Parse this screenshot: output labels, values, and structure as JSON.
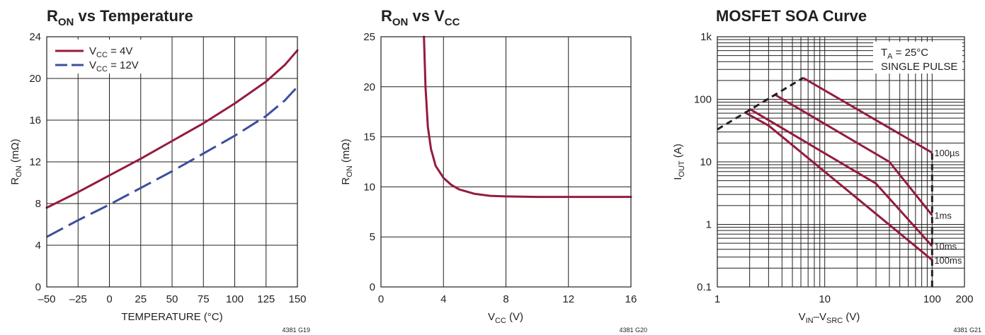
{
  "colors": {
    "red": "#951b3c",
    "blue": "#3d4f9c",
    "black": "#231f20"
  },
  "chart_data": [
    {
      "type": "line",
      "title": {
        "main": "R",
        "sub": "ON",
        "rest": " vs Temperature"
      },
      "xlabel": "TEMPERATURE (°C)",
      "ylabel": {
        "main": "R",
        "sub": "ON",
        "rest": " (mΩ)"
      },
      "xlim": [
        -50,
        150
      ],
      "ylim": [
        0,
        24
      ],
      "xticks": [
        -50,
        -25,
        0,
        25,
        50,
        75,
        100,
        125,
        150
      ],
      "xtick_labels": [
        "–50",
        "–25",
        "0",
        "25",
        "50",
        "75",
        "100",
        "125",
        "150"
      ],
      "yticks": [
        0,
        4,
        8,
        12,
        16,
        20,
        24
      ],
      "ytick_labels": [
        "0",
        "4",
        "8",
        "12",
        "16",
        "20",
        "24"
      ],
      "grid": true,
      "legend": "top-left",
      "series": [
        {
          "name": "VCC = 4V",
          "legend": {
            "main": "V",
            "sub": "CC",
            "rest": " = 4V"
          },
          "style": "solid",
          "color": "#951b3c",
          "x": [
            -50,
            -25,
            0,
            25,
            50,
            75,
            100,
            125,
            140,
            150
          ],
          "y": [
            7.6,
            9.1,
            10.7,
            12.3,
            14.0,
            15.7,
            17.6,
            19.7,
            21.3,
            22.7
          ]
        },
        {
          "name": "VCC = 12V",
          "legend": {
            "main": "V",
            "sub": "CC",
            "rest": " = 12V"
          },
          "style": "dashed",
          "color": "#3d4f9c",
          "x": [
            -50,
            -25,
            0,
            25,
            50,
            75,
            100,
            125,
            140,
            150
          ],
          "y": [
            4.8,
            6.4,
            7.9,
            9.5,
            11.1,
            12.8,
            14.5,
            16.4,
            17.9,
            19.2
          ]
        }
      ],
      "code": "4381 G19"
    },
    {
      "type": "line",
      "title": {
        "main": "R",
        "sub": "ON",
        "mid": " vs V",
        "sub2": "CC"
      },
      "xlabel": {
        "main": "V",
        "sub": "CC",
        "rest": " (V)"
      },
      "ylabel": {
        "main": "R",
        "sub": "ON",
        "rest": " (mΩ)"
      },
      "xlim": [
        0,
        16
      ],
      "ylim": [
        0,
        25
      ],
      "xticks": [
        0,
        4,
        8,
        12,
        16
      ],
      "xtick_labels": [
        "0",
        "4",
        "8",
        "12",
        "16"
      ],
      "yticks": [
        0,
        5,
        10,
        15,
        20,
        25
      ],
      "ytick_labels": [
        "0",
        "5",
        "10",
        "15",
        "20",
        "25"
      ],
      "grid": true,
      "series": [
        {
          "color": "#951b3c",
          "style": "solid",
          "x": [
            2.75,
            2.85,
            3.0,
            3.2,
            3.5,
            4.0,
            4.5,
            5.0,
            6.0,
            7.0,
            8.0,
            10.0,
            12.0,
            16.0
          ],
          "y": [
            25.0,
            20.0,
            16.0,
            13.8,
            12.1,
            10.9,
            10.2,
            9.75,
            9.3,
            9.1,
            9.05,
            9.0,
            9.0,
            9.0
          ]
        }
      ],
      "code": "4381 G20"
    },
    {
      "type": "line",
      "title": "MOSFET SOA Curve",
      "xlabel": {
        "main": "V",
        "sub": "IN",
        "mid": "–V",
        "sub2": "SRC",
        "rest": " (V)"
      },
      "ylabel": {
        "main": "I",
        "sub": "OUT",
        "rest": " (A)"
      },
      "xscale": "log",
      "yscale": "log",
      "xlim": [
        1,
        200
      ],
      "ylim": [
        0.1,
        1000
      ],
      "xticks": [
        1,
        10,
        100,
        200
      ],
      "xtick_labels": [
        "1",
        "10",
        "100",
        "200"
      ],
      "yticks": [
        0.1,
        1,
        10,
        100,
        1000
      ],
      "ytick_labels": [
        "0.1",
        "1",
        "10",
        "100",
        "1k"
      ],
      "grid": true,
      "annotation": {
        "line1_main": "T",
        "line1_sub": "A",
        "line1_rest": " = 25°C",
        "line2": "SINGLE PULSE"
      },
      "series": [
        {
          "name": "100µs",
          "label": "100µs",
          "color": "#951b3c",
          "style": "solid",
          "x": [
            6.3,
            100
          ],
          "y": [
            220,
            14
          ]
        },
        {
          "name": "1ms",
          "label": "1ms",
          "color": "#951b3c",
          "style": "solid",
          "x": [
            3.4,
            40,
            100
          ],
          "y": [
            120,
            10,
            1.4
          ]
        },
        {
          "name": "10ms",
          "label": "10ms",
          "color": "#951b3c",
          "style": "solid",
          "x": [
            2.0,
            30,
            100
          ],
          "y": [
            70,
            4.5,
            0.45
          ]
        },
        {
          "name": "100ms",
          "label": "100ms",
          "color": "#951b3c",
          "style": "solid",
          "x": [
            1.8,
            3.0,
            100
          ],
          "y": [
            62,
            38,
            0.27
          ]
        },
        {
          "name": "limit",
          "color": "#231f20",
          "style": "dashed",
          "x": [
            1,
            6.3
          ],
          "y": [
            33,
            220
          ]
        },
        {
          "name": "vmax",
          "color": "#231f20",
          "style": "dashed",
          "x": [
            100,
            100
          ],
          "y": [
            0.1,
            14
          ]
        }
      ],
      "code": "4381 G21"
    }
  ]
}
